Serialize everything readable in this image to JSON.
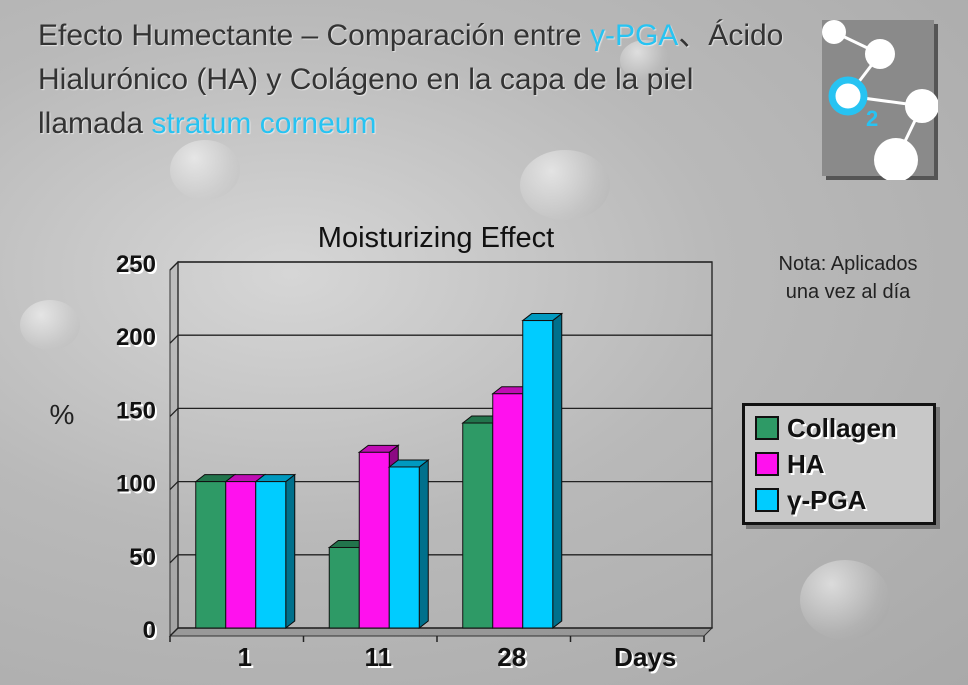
{
  "header": {
    "title_part1": "Efecto Humectante – Comparación entre ",
    "title_gpga": "γ-PGA",
    "title_part2": "、Ácido Hialurónico (HA) y Colágeno en la capa de la piel llamada ",
    "title_sc": "stratum corneum"
  },
  "logo": {
    "icon": "o2-molecule-icon",
    "label_o": "O",
    "label_2": "2"
  },
  "note": "Nota: Aplicados\nuna vez al día",
  "colors": {
    "collagen": "#2e9a66",
    "ha": "#ff11ee",
    "gpga": "#00ccff",
    "accent": "#27c3f2"
  },
  "chart_data": {
    "type": "bar",
    "title": "Moisturizing Effect",
    "ylabel": "%",
    "xlabel": "Days",
    "categories": [
      "1",
      "11",
      "28"
    ],
    "series": [
      {
        "name": "Collagen",
        "values": [
          100,
          55,
          140
        ]
      },
      {
        "name": "HA",
        "values": [
          100,
          120,
          160
        ]
      },
      {
        "name": "γ-PGA",
        "values": [
          100,
          110,
          210
        ]
      }
    ],
    "ylim": [
      0,
      250
    ],
    "yticks": [
      0,
      50,
      100,
      150,
      200,
      250
    ],
    "grid": true,
    "legend_position": "right"
  }
}
